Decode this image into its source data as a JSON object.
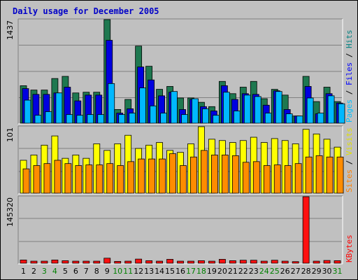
{
  "chart_data": {
    "type": "bar",
    "title": "Daily usage for December 2005",
    "categories": [
      "1",
      "2",
      "3",
      "4",
      "5",
      "6",
      "7",
      "8",
      "9",
      "10",
      "11",
      "12",
      "13",
      "14",
      "15",
      "16",
      "17",
      "18",
      "19",
      "20",
      "21",
      "22",
      "23",
      "24",
      "25",
      "26",
      "27",
      "28",
      "29",
      "30",
      "31"
    ],
    "weekend_days": [
      "3",
      "4",
      "10",
      "11",
      "17",
      "18",
      "24",
      "25",
      "31"
    ],
    "panels": [
      {
        "id": "hits_files_pages",
        "ymax": 1437,
        "tick_label": "1437",
        "labels": [
          "Pages",
          "Files",
          "Hits"
        ],
        "label_colors": [
          "#00c0ff",
          "#0000ff",
          "#008080"
        ],
        "series": [
          {
            "name": "Hits",
            "color": "#1e7850",
            "values": [
              520,
              460,
              460,
              620,
              650,
              420,
              430,
              430,
              1437,
              190,
              330,
              1070,
              790,
              470,
              510,
              350,
              350,
              290,
              230,
              580,
              410,
              500,
              580,
              340,
              470,
              390,
              100,
              650,
              300,
              500,
              300
            ]
          },
          {
            "name": "Files",
            "color": "#0000e0",
            "values": [
              480,
              400,
              400,
              420,
              500,
              310,
              390,
              390,
              1150,
              140,
              200,
              780,
              600,
              380,
              430,
              190,
              330,
              230,
              170,
              520,
              330,
              410,
              400,
              250,
              450,
              190,
              100,
              510,
              130,
              410,
              280
            ]
          },
          {
            "name": "Pages",
            "color": "#00b8ff",
            "values": [
              320,
              110,
              160,
              420,
              120,
              110,
              120,
              120,
              550,
              120,
              140,
              490,
              240,
              140,
              440,
              120,
              340,
              200,
              110,
              430,
              170,
              390,
              370,
              140,
              440,
              130,
              100,
              350,
              140,
              380,
              270
            ]
          }
        ]
      },
      {
        "id": "visits_sites",
        "ymax": 101,
        "tick_label": "101",
        "labels": [
          "Sites",
          "Visits"
        ],
        "label_colors": [
          "#ff8000",
          "#e0e000"
        ],
        "series": [
          {
            "name": "Visits",
            "color": "#ffff00",
            "values": [
              50,
              58,
              73,
              87,
              53,
              58,
              53,
              75,
              65,
              75,
              88,
              68,
              73,
              77,
              65,
              62,
              75,
              101,
              82,
              80,
              77,
              80,
              85,
              77,
              83,
              80,
              75,
              97,
              90,
              82,
              70
            ]
          },
          {
            "name": "Sites",
            "color": "#ff8c00",
            "values": [
              37,
              42,
              45,
              50,
              45,
              42,
              43,
              43,
              45,
              42,
              48,
              52,
              52,
              52,
              60,
              42,
              55,
              65,
              58,
              58,
              57,
              47,
              48,
              42,
              43,
              42,
              45,
              55,
              57,
              55,
              55
            ]
          }
        ]
      },
      {
        "id": "kbytes",
        "ymax": 145320,
        "tick_label": "145320",
        "labels": [
          "KBytes"
        ],
        "label_colors": [
          "#ff0000"
        ],
        "series": [
          {
            "name": "KBytes",
            "color": "#ff1010",
            "values": [
              7000,
              4500,
              4500,
              7000,
              5500,
              4500,
              4500,
              4500,
              11000,
              4000,
              4500,
              9000,
              5500,
              4500,
              8500,
              4500,
              4500,
              5500,
              4500,
              8500,
              5500,
              6500,
              6500,
              4500,
              6500,
              4500,
              3500,
              145320,
              4500,
              6000,
              5500
            ]
          }
        ]
      }
    ]
  }
}
